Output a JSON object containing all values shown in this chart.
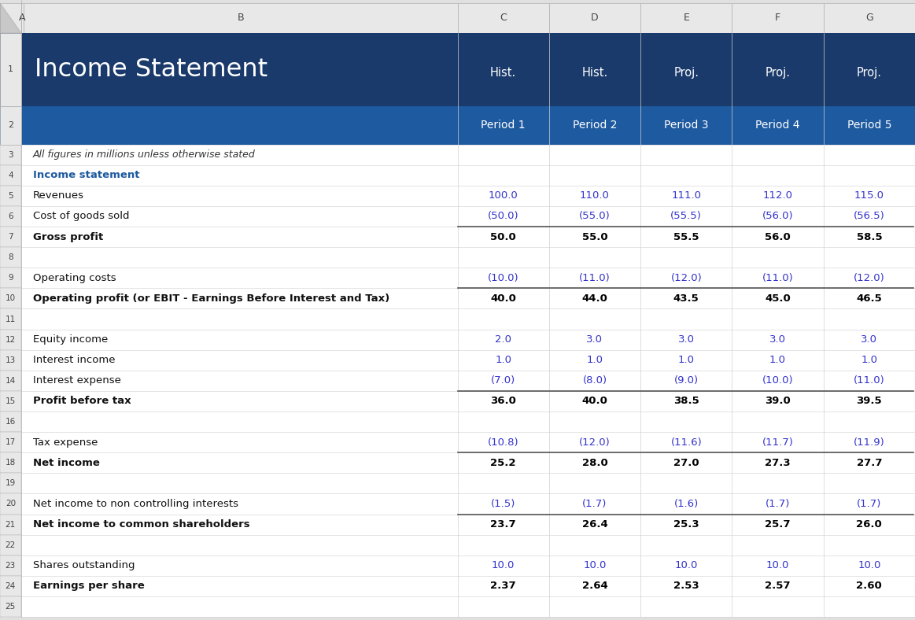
{
  "title": "Income Statement",
  "col_headers_row1": [
    "Hist.",
    "Hist.",
    "Proj.",
    "Proj.",
    "Proj."
  ],
  "col_headers_row2": [
    "Period 1",
    "Period 2",
    "Period 3",
    "Period 4",
    "Period 5"
  ],
  "rows": [
    {
      "row": 3,
      "label": "All figures in millions unless otherwise stated",
      "values": [
        "",
        "",
        "",
        "",
        ""
      ],
      "style": "italic_note",
      "bold": false,
      "bottom_border": false
    },
    {
      "row": 4,
      "label": "Income statement",
      "values": [
        "",
        "",
        "",
        "",
        ""
      ],
      "style": "section",
      "bold": true,
      "bottom_border": false
    },
    {
      "row": 5,
      "label": "Revenues",
      "values": [
        "100.0",
        "110.0",
        "111.0",
        "112.0",
        "115.0"
      ],
      "style": "data_blue",
      "bold": false,
      "bottom_border": false
    },
    {
      "row": 6,
      "label": "Cost of goods sold",
      "values": [
        "(50.0)",
        "(55.0)",
        "(55.5)",
        "(56.0)",
        "(56.5)"
      ],
      "style": "data_blue",
      "bold": false,
      "bottom_border": true
    },
    {
      "row": 7,
      "label": "Gross profit",
      "values": [
        "50.0",
        "55.0",
        "55.5",
        "56.0",
        "58.5"
      ],
      "style": "subtotal",
      "bold": true,
      "bottom_border": false
    },
    {
      "row": 8,
      "label": "",
      "values": [
        "",
        "",
        "",
        "",
        ""
      ],
      "style": "empty",
      "bold": false,
      "bottom_border": false
    },
    {
      "row": 9,
      "label": "Operating costs",
      "values": [
        "(10.0)",
        "(11.0)",
        "(12.0)",
        "(11.0)",
        "(12.0)"
      ],
      "style": "data_blue",
      "bold": false,
      "bottom_border": true
    },
    {
      "row": 10,
      "label": "Operating profit (or EBIT - Earnings Before Interest and Tax)",
      "values": [
        "40.0",
        "44.0",
        "43.5",
        "45.0",
        "46.5"
      ],
      "style": "subtotal",
      "bold": true,
      "bottom_border": false
    },
    {
      "row": 11,
      "label": "",
      "values": [
        "",
        "",
        "",
        "",
        ""
      ],
      "style": "empty",
      "bold": false,
      "bottom_border": false
    },
    {
      "row": 12,
      "label": "Equity income",
      "values": [
        "2.0",
        "3.0",
        "3.0",
        "3.0",
        "3.0"
      ],
      "style": "data_blue",
      "bold": false,
      "bottom_border": false
    },
    {
      "row": 13,
      "label": "Interest income",
      "values": [
        "1.0",
        "1.0",
        "1.0",
        "1.0",
        "1.0"
      ],
      "style": "data_blue",
      "bold": false,
      "bottom_border": false
    },
    {
      "row": 14,
      "label": "Interest expense",
      "values": [
        "(7.0)",
        "(8.0)",
        "(9.0)",
        "(10.0)",
        "(11.0)"
      ],
      "style": "data_blue",
      "bold": false,
      "bottom_border": true
    },
    {
      "row": 15,
      "label": "Profit before tax",
      "values": [
        "36.0",
        "40.0",
        "38.5",
        "39.0",
        "39.5"
      ],
      "style": "subtotal",
      "bold": true,
      "bottom_border": false
    },
    {
      "row": 16,
      "label": "",
      "values": [
        "",
        "",
        "",
        "",
        ""
      ],
      "style": "empty",
      "bold": false,
      "bottom_border": false
    },
    {
      "row": 17,
      "label": "Tax expense",
      "values": [
        "(10.8)",
        "(12.0)",
        "(11.6)",
        "(11.7)",
        "(11.9)"
      ],
      "style": "data_blue",
      "bold": false,
      "bottom_border": true
    },
    {
      "row": 18,
      "label": "Net income",
      "values": [
        "25.2",
        "28.0",
        "27.0",
        "27.3",
        "27.7"
      ],
      "style": "subtotal",
      "bold": true,
      "bottom_border": false
    },
    {
      "row": 19,
      "label": "",
      "values": [
        "",
        "",
        "",
        "",
        ""
      ],
      "style": "empty",
      "bold": false,
      "bottom_border": false
    },
    {
      "row": 20,
      "label": "Net income to non controlling interests",
      "values": [
        "(1.5)",
        "(1.7)",
        "(1.6)",
        "(1.7)",
        "(1.7)"
      ],
      "style": "data_blue",
      "bold": false,
      "bottom_border": true
    },
    {
      "row": 21,
      "label": "Net income to common shareholders",
      "values": [
        "23.7",
        "26.4",
        "25.3",
        "25.7",
        "26.0"
      ],
      "style": "subtotal",
      "bold": true,
      "bottom_border": false
    },
    {
      "row": 22,
      "label": "",
      "values": [
        "",
        "",
        "",
        "",
        ""
      ],
      "style": "empty",
      "bold": false,
      "bottom_border": false
    },
    {
      "row": 23,
      "label": "Shares outstanding",
      "values": [
        "10.0",
        "10.0",
        "10.0",
        "10.0",
        "10.0"
      ],
      "style": "data_blue",
      "bold": false,
      "bottom_border": false
    },
    {
      "row": 24,
      "label": "Earnings per share",
      "values": [
        "2.37",
        "2.64",
        "2.53",
        "2.57",
        "2.60"
      ],
      "style": "subtotal",
      "bold": true,
      "bottom_border": false
    },
    {
      "row": 25,
      "label": "",
      "values": [
        "",
        "",
        "",
        "",
        ""
      ],
      "style": "empty",
      "bold": false,
      "bottom_border": false
    }
  ],
  "dark_header_bg": "#1a3a6b",
  "medium_header_bg": "#1e5aa0",
  "col_letter_bg": "#e8e8e8",
  "spreadsheet_bg": "#e0e0e0",
  "cell_bg": "#ffffff",
  "border_color": "#d0d0d0",
  "row_number_border": "#b0b0b0",
  "blue_data_color": "#3333cc",
  "black_data_color": "#000000",
  "section_color": "#1e5aa0"
}
